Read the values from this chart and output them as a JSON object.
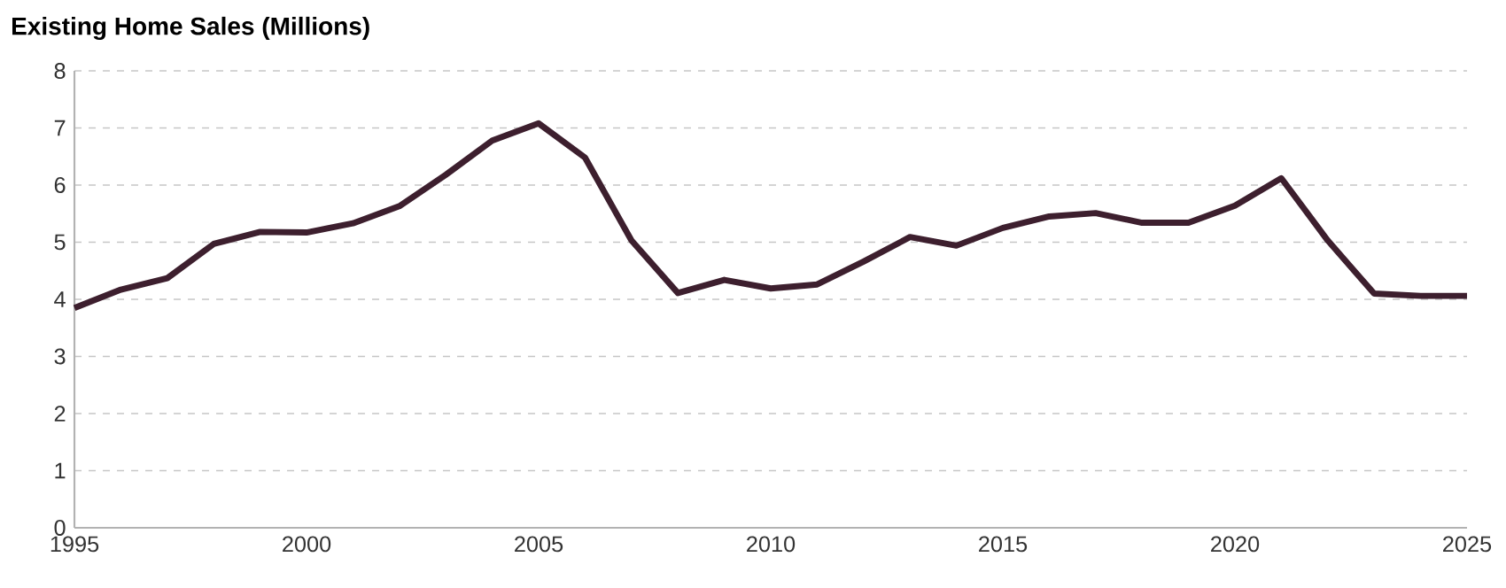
{
  "chart_data": {
    "type": "line",
    "title": "Existing Home Sales (Millions)",
    "x": [
      1995,
      1996,
      1997,
      1998,
      1999,
      2000,
      2001,
      2002,
      2003,
      2004,
      2005,
      2006,
      2007,
      2008,
      2009,
      2010,
      2011,
      2012,
      2013,
      2014,
      2015,
      2016,
      2017,
      2018,
      2019,
      2020,
      2021,
      2022,
      2023,
      2024,
      2025
    ],
    "series": [
      {
        "color": "#3d1f2e",
        "values": [
          3.85,
          4.17,
          4.37,
          4.97,
          5.18,
          5.17,
          5.33,
          5.63,
          6.18,
          6.78,
          7.08,
          6.48,
          5.03,
          4.11,
          4.34,
          4.19,
          4.26,
          4.66,
          5.09,
          4.94,
          5.25,
          5.45,
          5.51,
          5.34,
          5.34,
          5.64,
          6.12,
          5.03,
          4.1,
          4.06,
          4.06
        ]
      }
    ],
    "xlim": [
      1995,
      2025
    ],
    "xticks": [
      1995,
      2000,
      2005,
      2010,
      2015,
      2020,
      2025
    ],
    "ylim": [
      0,
      8
    ],
    "yticks": [
      0,
      1,
      2,
      3,
      4,
      5,
      6,
      7,
      8
    ],
    "grid": "y",
    "marker": "none",
    "line_style": "solid"
  }
}
